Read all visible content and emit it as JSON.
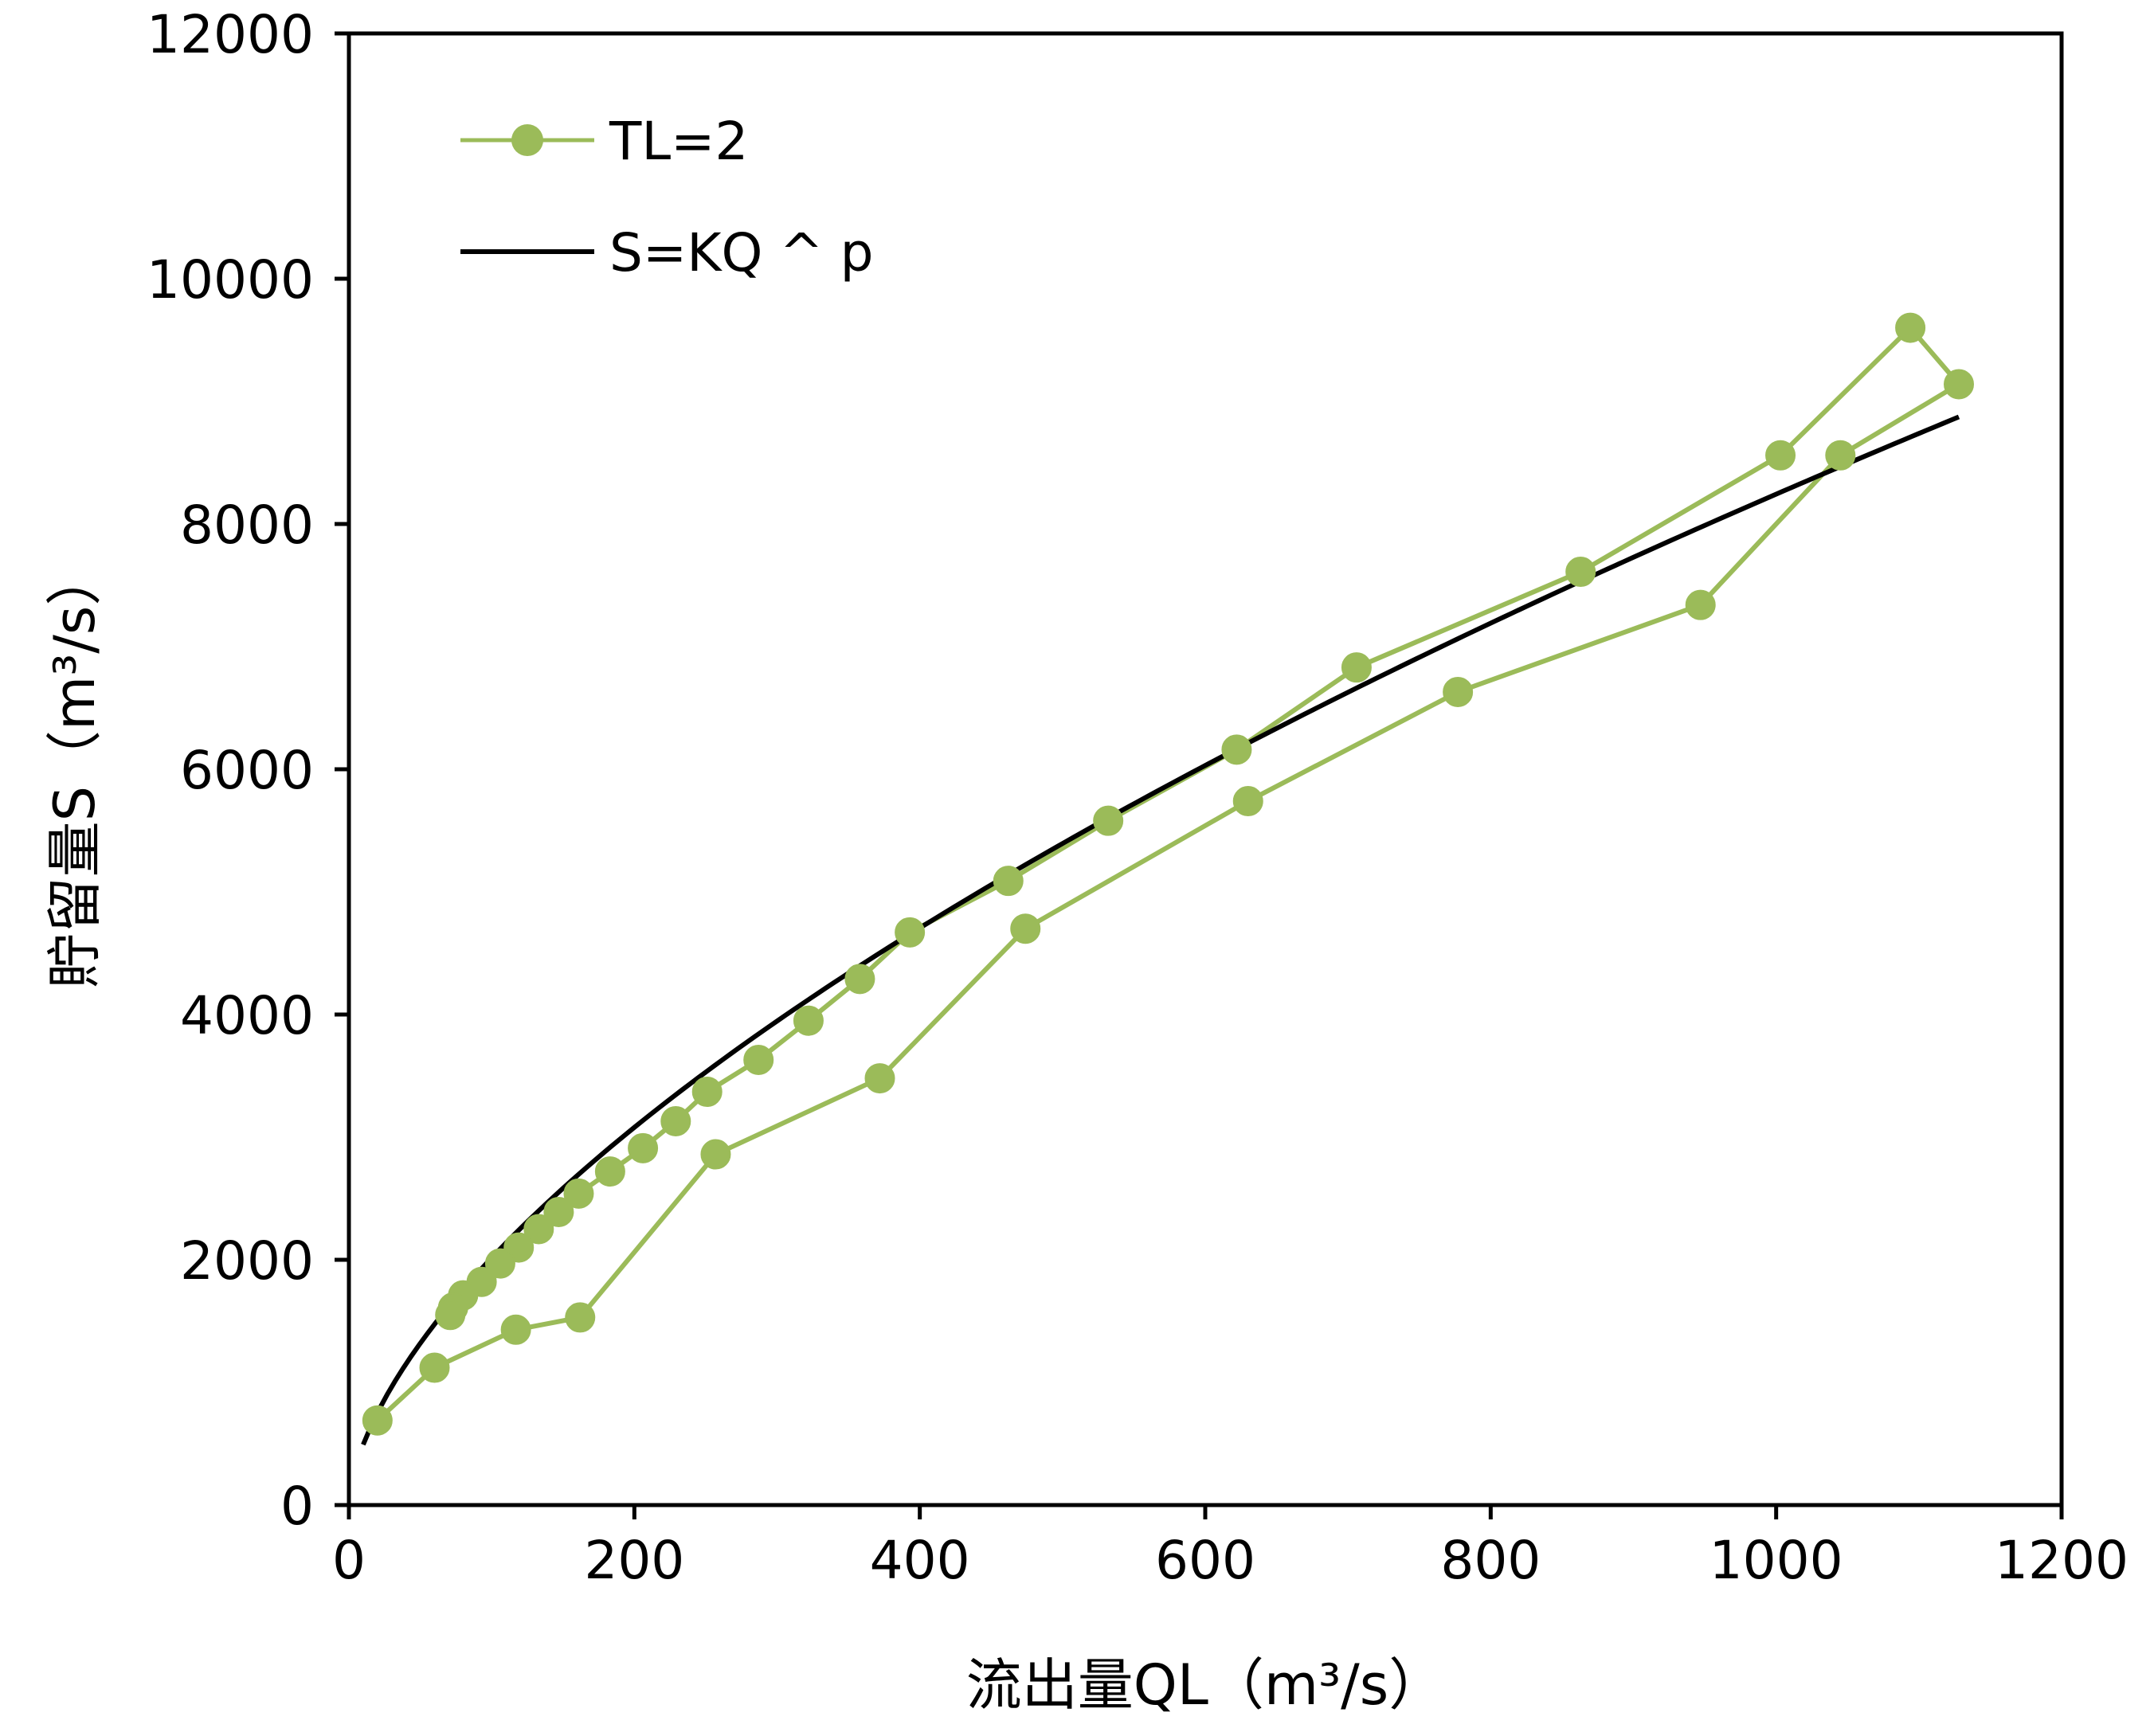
{
  "chart_data": {
    "type": "line",
    "xlabel": "流出量QL（m³/s）",
    "ylabel": "貯留量S（m³/s）",
    "xlim": [
      0,
      1200
    ],
    "ylim": [
      0,
      12000
    ],
    "x_ticks": [
      "0",
      "200",
      "400",
      "600",
      "800",
      "1000",
      "1200"
    ],
    "y_ticks": [
      "0",
      "2000",
      "4000",
      "6000",
      "8000",
      "10000",
      "12000"
    ],
    "grid": false,
    "legend_position": "top-left",
    "series": [
      {
        "name": "TL=2",
        "style": "line-markers",
        "color": "#9BBB59",
        "points": [
          [
            20,
            690
          ],
          [
            60,
            1120
          ],
          [
            117,
            1430
          ],
          [
            162,
            1530
          ],
          [
            257,
            2860
          ],
          [
            372,
            3480
          ],
          [
            474,
            4700
          ],
          [
            630,
            5740
          ],
          [
            777,
            6630
          ],
          [
            947,
            7340
          ],
          [
            1045,
            8560
          ],
          [
            1128,
            9140
          ],
          [
            1094,
            9600
          ],
          [
            1003,
            8560
          ],
          [
            863,
            7610
          ],
          [
            706,
            6830
          ],
          [
            622,
            6160
          ],
          [
            532,
            5580
          ],
          [
            462,
            5090
          ],
          [
            393,
            4670
          ],
          [
            358,
            4290
          ],
          [
            322,
            3950
          ],
          [
            287,
            3630
          ],
          [
            251,
            3370
          ],
          [
            229,
            3130
          ],
          [
            206,
            2910
          ],
          [
            183,
            2720
          ],
          [
            161,
            2540
          ],
          [
            147,
            2390
          ],
          [
            133,
            2250
          ],
          [
            119,
            2100
          ],
          [
            106,
            1970
          ],
          [
            93,
            1820
          ],
          [
            80,
            1710
          ],
          [
            73,
            1610
          ],
          [
            71,
            1550
          ]
        ]
      },
      {
        "name": "S=KQ ^ p",
        "style": "line",
        "color": "#000000",
        "K": 120.5,
        "p": 0.6117,
        "x_range": [
          10,
          1128
        ]
      }
    ]
  }
}
